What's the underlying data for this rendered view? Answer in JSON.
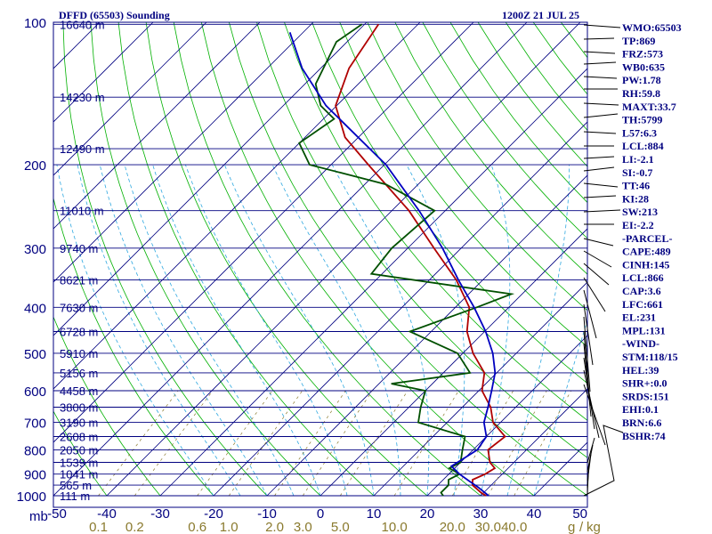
{
  "title": {
    "station": "DFFD (65503) Sounding",
    "time": "1200Z 21 JUL 25"
  },
  "axis": {
    "pressure_unit": "mb",
    "mixing_unit": "g/kg",
    "mixing_unit_g": "g",
    "mixing_unit_slash": "/",
    "mixing_unit_kg": "kg",
    "colors": {
      "frame": "#000080",
      "isobar": "#000080",
      "isotherm": "#000080",
      "dry_adiabat": "#00b000",
      "moist_adiabat": "#2fa8e0",
      "mixing_ratio": "#8a7a2e",
      "temperature": "#b00000",
      "dewpoint": "#005000",
      "parcel": "#0000c0"
    }
  },
  "pressure_labels": [
    "100",
    "200",
    "300",
    "400",
    "500",
    "600",
    "700",
    "800",
    "900",
    "1000"
  ],
  "height_labels": [
    "16640 m",
    "14230 m",
    "12490 m",
    "11010 m",
    "9740 m",
    "8621 m",
    "7630 m",
    "6728 m",
    "5910 m",
    "5156 m",
    "4458 m",
    "3800 m",
    "3190 m",
    "2608 m",
    "2050 m",
    "1539 m",
    "1041 m",
    "565 m",
    "111 m"
  ],
  "temp_labels": [
    "-50",
    "-40",
    "-30",
    "-20",
    "-10",
    "0",
    "10",
    "20",
    "30",
    "40",
    "50"
  ],
  "mixing_labels": [
    "0.1",
    "0.2",
    "0.6",
    "1.0",
    "2.0",
    "3.0",
    "5.0",
    "10.0",
    "20.0",
    "30.0",
    "40.0"
  ],
  "indices": [
    "WMO:65503",
    "TP:869",
    "FRZ:573",
    "WB0:635",
    "PW:1.78",
    "RH:59.8",
    "MAXT:33.7",
    "TH:5799",
    "L57:6.3",
    "LCL:884",
    "LI:-2.1",
    "SI:-0.7",
    "TT:46",
    "KI:28",
    "SW:213",
    "EI:-2.2",
    "-PARCEL-",
    "CAPE:489",
    "CINH:145",
    "LCL:866",
    "CAP:3.6",
    "LFC:661",
    "EL:231",
    "MPL:131",
    "-WIND-",
    "STM:118/15",
    "HEL:39",
    "SHR+:0.0",
    "SRDS:151",
    "EHI:0.1",
    "BRN:6.6",
    "BSHR:74"
  ],
  "chart_data": {
    "type": "line",
    "chart_kind": "skew-T log-P sounding",
    "y_scale": "log",
    "ylim": [
      1000,
      100
    ],
    "xlim_at_1000mb": [
      -50,
      50
    ],
    "pressure_ticks": [
      100,
      200,
      300,
      400,
      500,
      600,
      700,
      800,
      900,
      1000
    ],
    "height_levels": [
      {
        "p": 101,
        "z": "16640 m"
      },
      {
        "p": 144,
        "z": "14230 m"
      },
      {
        "p": 185,
        "z": "12490 m"
      },
      {
        "p": 250,
        "z": "11010 m"
      },
      {
        "p": 300,
        "z": "9740 m"
      },
      {
        "p": 350,
        "z": "8621 m"
      },
      {
        "p": 400,
        "z": "7630 m"
      },
      {
        "p": 450,
        "z": "6728 m"
      },
      {
        "p": 500,
        "z": "5910 m"
      },
      {
        "p": 550,
        "z": "5156 m"
      },
      {
        "p": 600,
        "z": "4458 m"
      },
      {
        "p": 650,
        "z": "3800 m"
      },
      {
        "p": 700,
        "z": "3190 m"
      },
      {
        "p": 750,
        "z": "2608 m"
      },
      {
        "p": 800,
        "z": "2050 m"
      },
      {
        "p": 850,
        "z": "1539 m"
      },
      {
        "p": 900,
        "z": "1041 m"
      },
      {
        "p": 950,
        "z": "565 m"
      },
      {
        "p": 1000,
        "z": "111 m"
      }
    ],
    "series": [
      {
        "key": "temperature",
        "points": [
          [
            1000,
            31.0
          ],
          [
            985,
            29.5
          ],
          [
            950,
            26.5
          ],
          [
            925,
            25.5
          ],
          [
            900,
            26.8
          ],
          [
            875,
            27.5
          ],
          [
            850,
            25.5
          ],
          [
            800,
            22.8
          ],
          [
            750,
            23.5
          ],
          [
            700,
            18.6
          ],
          [
            650,
            15.3
          ],
          [
            600,
            10.6
          ],
          [
            550,
            7.7
          ],
          [
            500,
            1.9
          ],
          [
            450,
            -3.3
          ],
          [
            400,
            -7.4
          ],
          [
            350,
            -15.0
          ],
          [
            300,
            -25.1
          ],
          [
            250,
            -36.8
          ],
          [
            200,
            -53.0
          ],
          [
            175,
            -62.5
          ],
          [
            150,
            -70.2
          ],
          [
            125,
            -74.7
          ],
          [
            101,
            -77.4
          ]
        ]
      },
      {
        "key": "dewpoint",
        "points": [
          [
            1000,
            23.0
          ],
          [
            985,
            22.0
          ],
          [
            950,
            22.0
          ],
          [
            925,
            21.0
          ],
          [
            900,
            22.0
          ],
          [
            875,
            19.0
          ],
          [
            850,
            20.0
          ],
          [
            800,
            18.0
          ],
          [
            750,
            16.0
          ],
          [
            700,
            4.6
          ],
          [
            650,
            2.2
          ],
          [
            600,
            0.0
          ],
          [
            580,
            -7.7
          ],
          [
            550,
            5.0
          ],
          [
            500,
            -1.0
          ],
          [
            450,
            -14.0
          ],
          [
            400,
            -6.0
          ],
          [
            375,
            -2.0
          ],
          [
            340,
            -32.0
          ],
          [
            300,
            -33.0
          ],
          [
            250,
            -32.0
          ],
          [
            220,
            -46.0
          ],
          [
            200,
            -64.0
          ],
          [
            180,
            -70.0
          ],
          [
            160,
            -68.0
          ],
          [
            150,
            -73.0
          ],
          [
            135,
            -78.0
          ],
          [
            110,
            -82.0
          ],
          [
            101,
            -80.5
          ]
        ]
      },
      {
        "key": "parcel",
        "points": [
          [
            1000,
            31.5
          ],
          [
            960,
            28.0
          ],
          [
            930,
            25.0
          ],
          [
            900,
            22.0
          ],
          [
            866,
            19.0
          ],
          [
            800,
            20.8
          ],
          [
            750,
            20.0
          ],
          [
            700,
            16.9
          ],
          [
            650,
            14.8
          ],
          [
            600,
            12.4
          ],
          [
            550,
            9.7
          ],
          [
            500,
            5.6
          ],
          [
            450,
            0.2
          ],
          [
            400,
            -6.5
          ],
          [
            350,
            -14.6
          ],
          [
            300,
            -23.5
          ],
          [
            250,
            -34.9
          ],
          [
            200,
            -49.7
          ],
          [
            150,
            -72.0
          ],
          [
            125,
            -83.5
          ],
          [
            105,
            -92.5
          ]
        ]
      }
    ]
  }
}
